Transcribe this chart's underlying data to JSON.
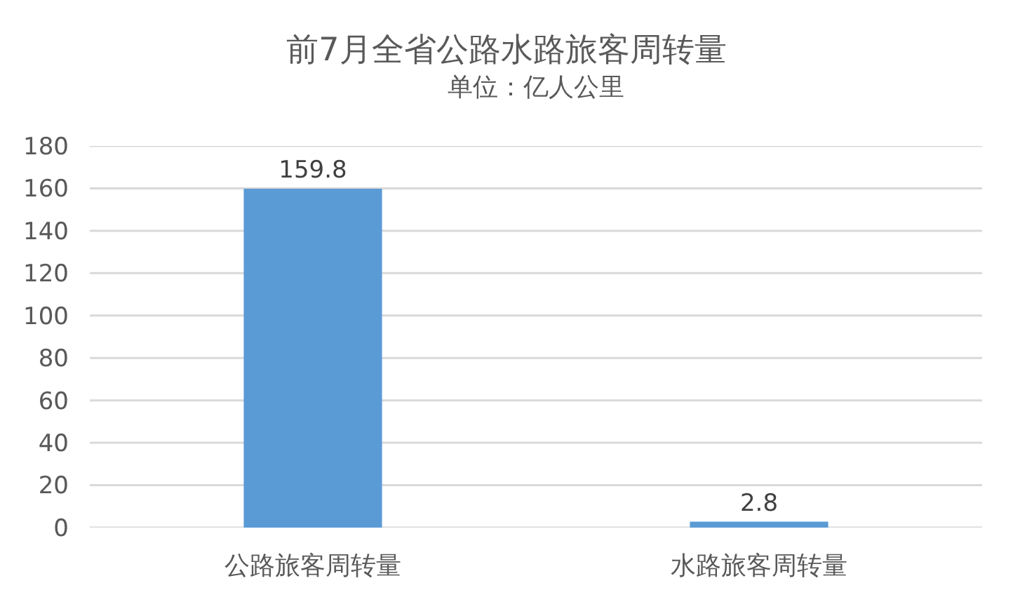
{
  "chart_data": {
    "type": "bar",
    "title": "前7月全省公路水路旅客周转量",
    "subtitle": "单位：亿人公里",
    "categories": [
      "公路旅客周转量",
      "水路旅客周转量"
    ],
    "values": [
      159.8,
      2.8
    ],
    "color": "#5b9bd5",
    "ylim": [
      0,
      180
    ],
    "yticks": [
      0,
      20,
      40,
      60,
      80,
      100,
      120,
      140,
      160,
      180
    ],
    "grid": "y",
    "data_labels": true
  }
}
